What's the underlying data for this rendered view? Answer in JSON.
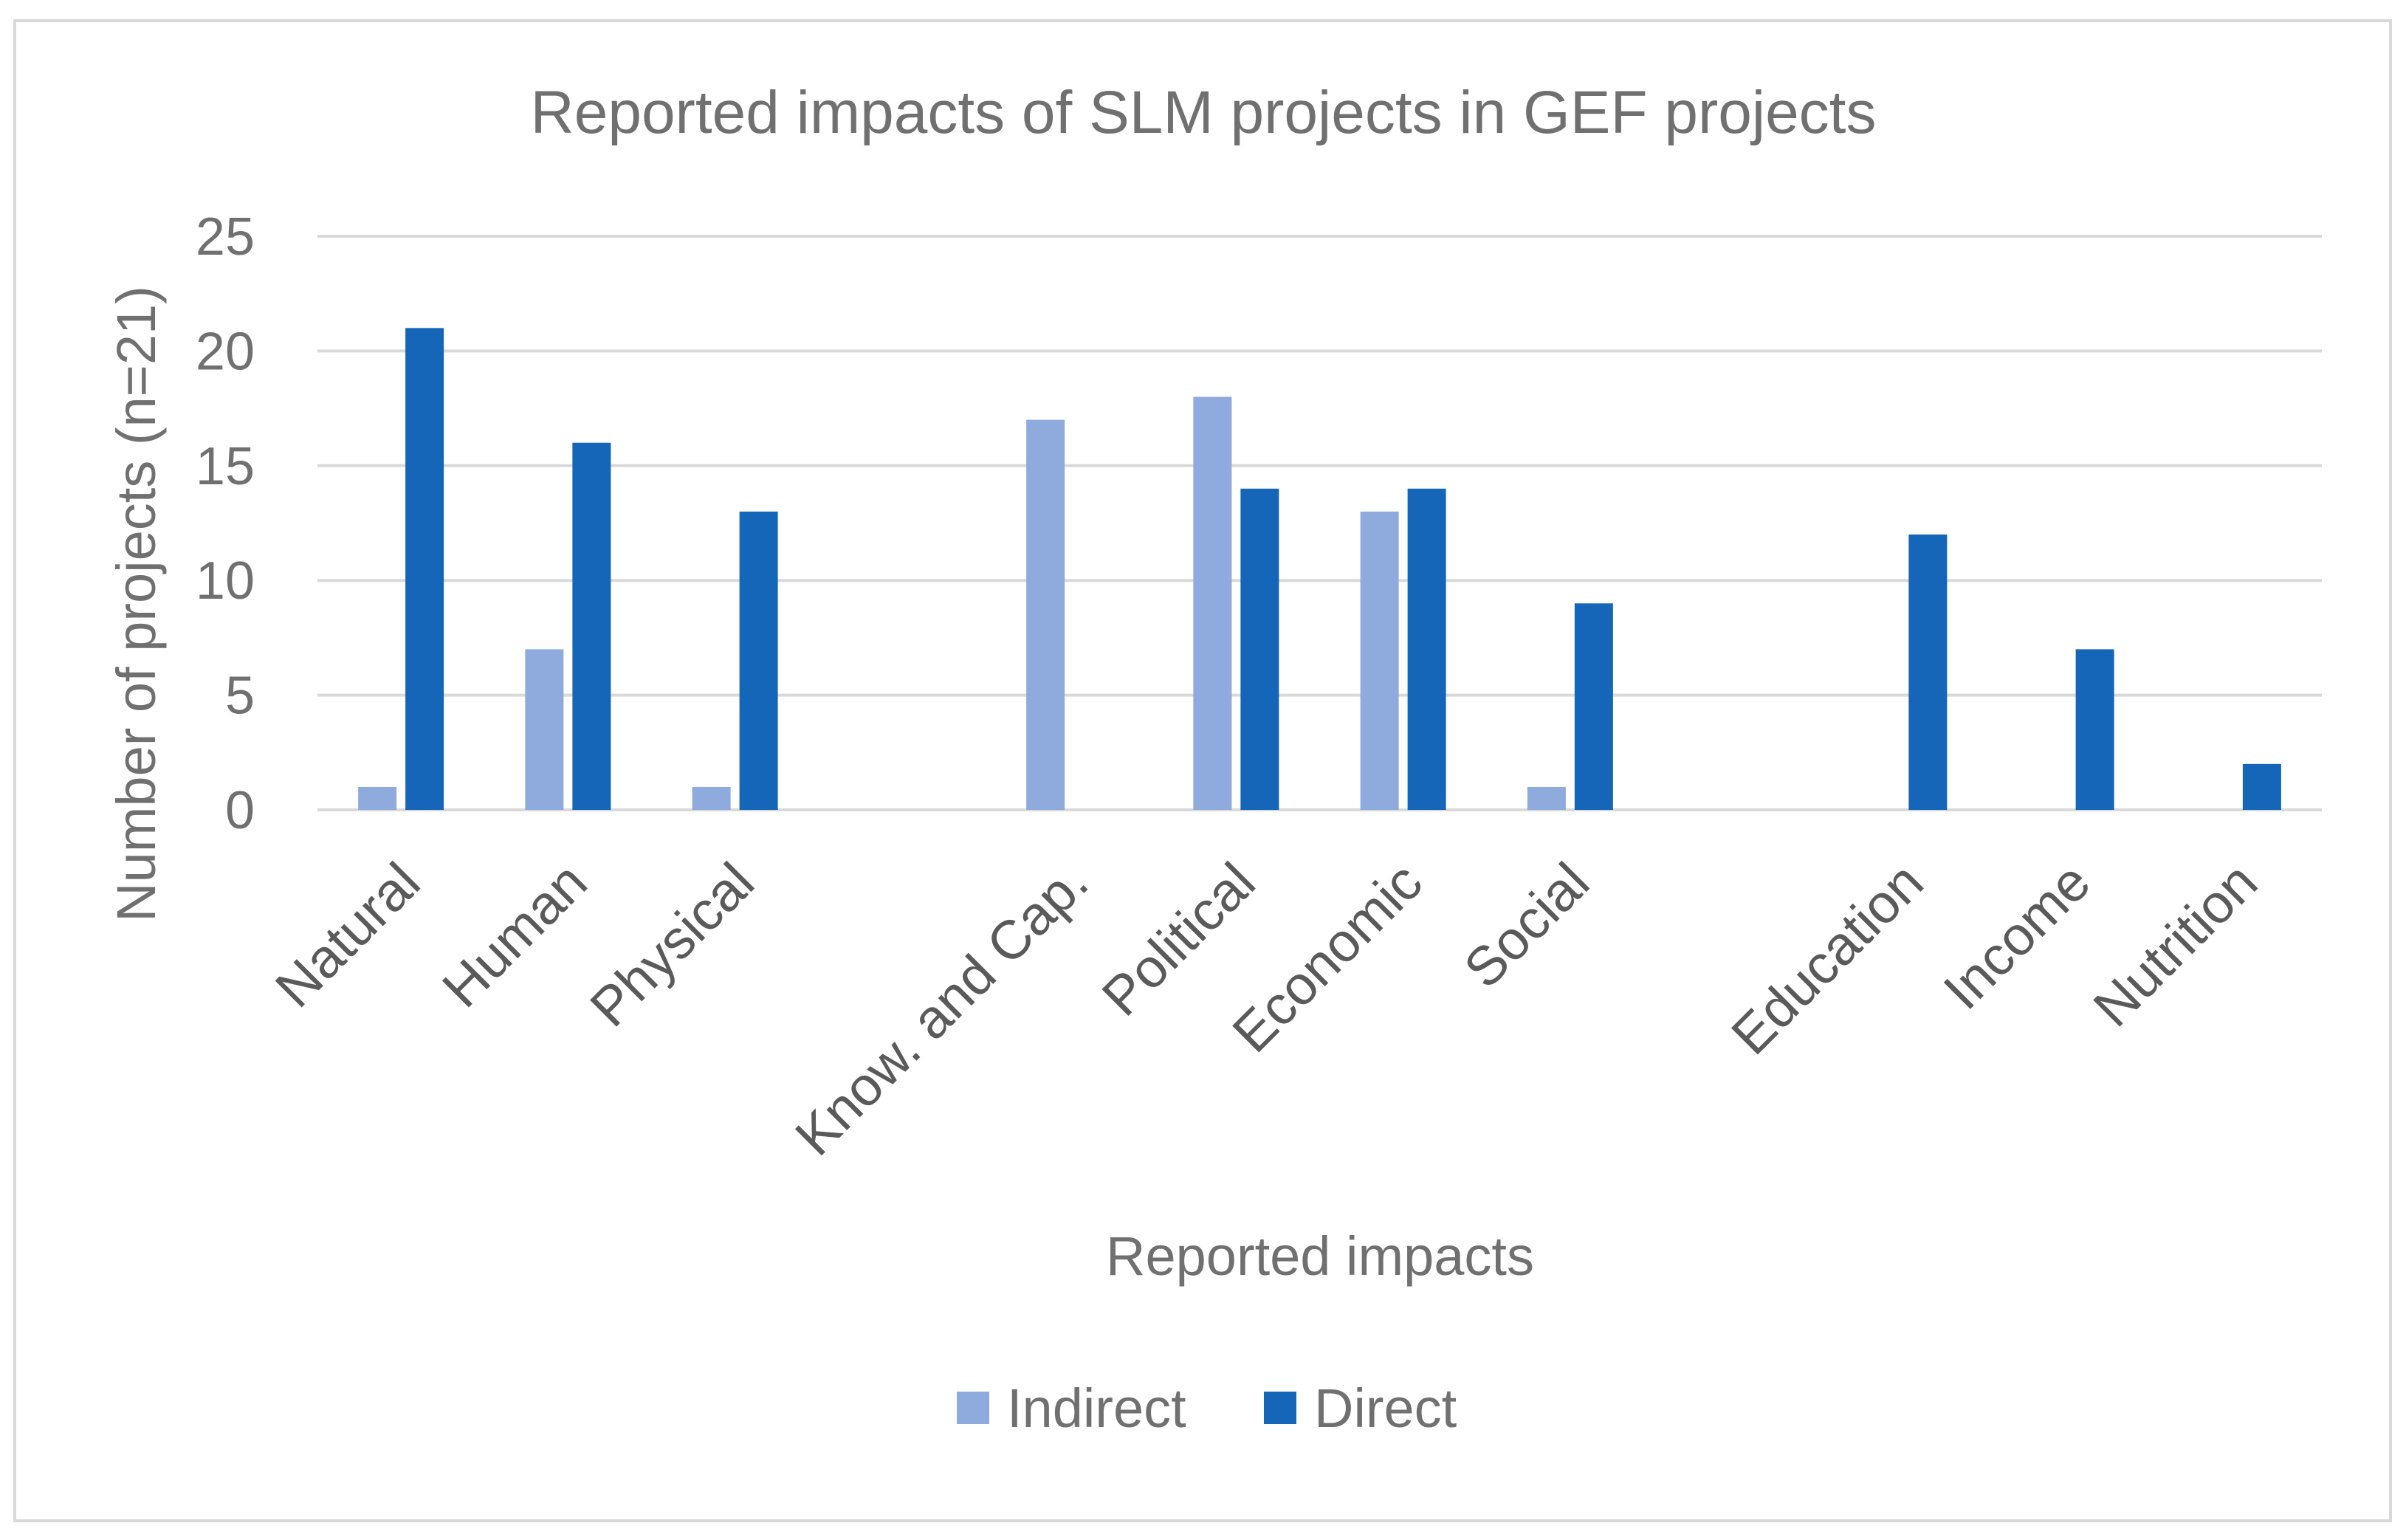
{
  "chart_data": {
    "type": "bar",
    "title": "Reported impacts of SLM projects in GEF projects",
    "xlabel": "Reported impacts",
    "ylabel": "Number of projects (n=21)",
    "ylim": [
      0,
      25
    ],
    "yticks": [
      0,
      5,
      10,
      15,
      20,
      25
    ],
    "grid": true,
    "legend_position": "bottom",
    "categories": [
      "Natural",
      "Human",
      "Physical",
      "",
      "Know. and Cap.",
      "Political",
      "Economic",
      "Social",
      "",
      "Education",
      "Income",
      "Nutrition"
    ],
    "series": [
      {
        "name": "Indirect",
        "color": "#8faadc",
        "values": [
          1,
          7,
          1,
          null,
          17,
          18,
          13,
          1,
          null,
          null,
          null,
          null
        ]
      },
      {
        "name": "Direct",
        "color": "#1565b8",
        "values": [
          21,
          16,
          13,
          null,
          null,
          14,
          14,
          9,
          null,
          12,
          7,
          2
        ]
      }
    ]
  }
}
